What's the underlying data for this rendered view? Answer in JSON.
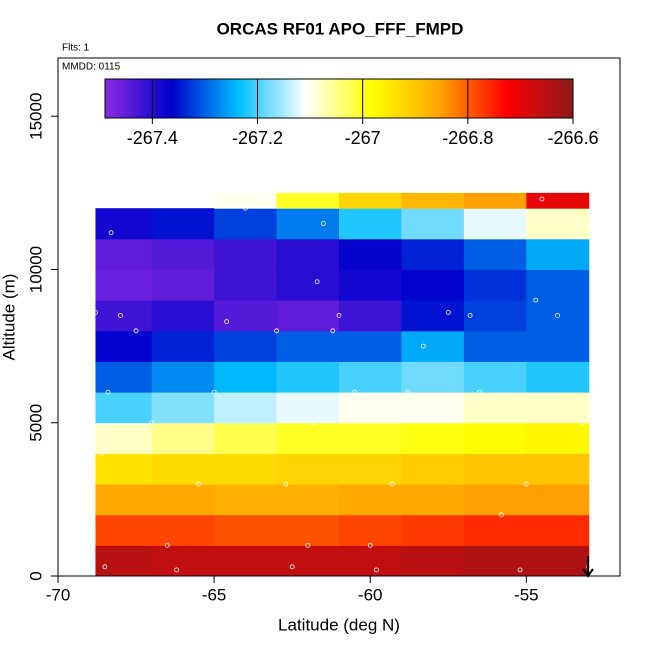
{
  "chart_data": {
    "type": "heatmap",
    "title": "ORCAS RF01 APO_FFF_FMPD",
    "annotations": [
      "Flts: 1",
      "MMDD: 0115"
    ],
    "xlabel": "Latitude (deg N)",
    "ylabel": "Altitude (m)",
    "xlim": [
      -70,
      -52
    ],
    "ylim": [
      0,
      16900
    ],
    "xticks": [
      -70,
      -65,
      -60,
      -55
    ],
    "yticks": [
      0,
      5000,
      10000,
      15000
    ],
    "clim": [
      -267.49,
      -266.6
    ],
    "cticks": [
      -267.4,
      -267.2,
      -267.0,
      -266.8,
      -266.6
    ],
    "colors": [
      "#8b2be2",
      "#0000cd",
      "#00bfff",
      "#ffffff",
      "#ffff00",
      "#ffa500",
      "#ff0000",
      "#8b1a1a"
    ],
    "x": [
      -68.8,
      -67,
      -65,
      -63,
      -61,
      -59,
      -57,
      -55,
      -53
    ],
    "y": [
      0,
      1000,
      2000,
      3000,
      4000,
      5000,
      6000,
      7000,
      8000,
      9000,
      10000,
      11000,
      12000,
      12500
    ],
    "z": [
      [
        -266.65,
        -266.66,
        -266.66,
        -266.66,
        -266.66,
        -266.65,
        -266.64,
        -266.64
      ],
      [
        -266.78,
        -266.78,
        -266.79,
        -266.79,
        -266.78,
        -266.77,
        -266.76,
        -266.76
      ],
      [
        -266.86,
        -266.86,
        -266.87,
        -266.87,
        -266.86,
        -266.86,
        -266.85,
        -266.85
      ],
      [
        -266.94,
        -266.93,
        -266.93,
        -266.92,
        -266.92,
        -266.91,
        -266.9,
        -266.9
      ],
      [
        -267.08,
        -267.05,
        -267.02,
        -267.0,
        -267.0,
        -266.99,
        -266.98,
        -266.97
      ],
      [
        -267.2,
        -267.17,
        -267.14,
        -267.12,
        -267.1,
        -267.1,
        -267.08,
        -267.08
      ],
      [
        -267.3,
        -267.27,
        -267.24,
        -267.22,
        -267.2,
        -267.18,
        -267.2,
        -267.22
      ],
      [
        -267.36,
        -267.34,
        -267.32,
        -267.3,
        -267.3,
        -267.25,
        -267.3,
        -267.3
      ],
      [
        -267.42,
        -267.4,
        -267.44,
        -267.45,
        -267.42,
        -267.35,
        -267.32,
        -267.3
      ],
      [
        -267.46,
        -267.45,
        -267.42,
        -267.4,
        -267.38,
        -267.36,
        -267.33,
        -267.3
      ],
      [
        -267.45,
        -267.44,
        -267.42,
        -267.4,
        -267.37,
        -267.34,
        -267.3,
        -267.25
      ],
      [
        -267.38,
        -267.35,
        -267.32,
        -267.28,
        -267.22,
        -267.18,
        -267.12,
        -267.08
      ],
      [
        null,
        null,
        -267.1,
        -267.0,
        -266.92,
        -266.88,
        -266.85,
        -266.7
      ]
    ],
    "track": {
      "x": [
        -68.8,
        -68.6,
        -68.5,
        -68.4,
        -68.3,
        -68,
        -67.5,
        -67,
        -66.5,
        -66.2,
        -65.5,
        -65,
        -64.6,
        -64,
        -63.4,
        -63,
        -62.7,
        -62.5,
        -62,
        -61.8,
        -61.7,
        -61.5,
        -61.2,
        -61,
        -60.5,
        -60,
        -59.8,
        -59.3,
        -58.8,
        -58.3,
        -57.5,
        -56.8,
        -56.5,
        -55.8,
        -55.2,
        -55,
        -54.7,
        -54.5,
        -54,
        -53.3,
        -53.2,
        -53
      ],
      "y": [
        8600,
        4000,
        300,
        6000,
        11200,
        8500,
        8000,
        5000,
        1000,
        200,
        3000,
        6000,
        8300,
        12000,
        12200,
        8000,
        3000,
        300,
        1000,
        5000,
        9600,
        11500,
        8000,
        8500,
        6000,
        1000,
        200,
        3000,
        6000,
        7500,
        8600,
        8500,
        6000,
        2000,
        200,
        3000,
        9000,
        12300,
        8500,
        11500,
        5000,
        300
      ]
    }
  }
}
